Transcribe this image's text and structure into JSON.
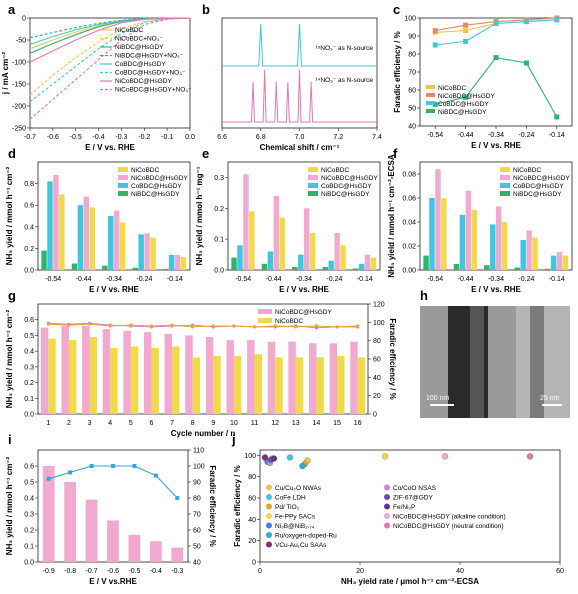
{
  "panel_labels": [
    "a",
    "b",
    "c",
    "d",
    "e",
    "f",
    "g",
    "h",
    "i",
    "j"
  ],
  "colors": {
    "NiCoBDC": "#f0d94a",
    "NiCoBDC@HsGDY": "#f2a9cf",
    "CoBDC@HsGDY": "#3fc7e0",
    "NiBDC@HsGDY": "#2fb56a",
    "fe_line_g": "#e8a23a",
    "fe_line_i": "#35a9d8",
    "pink_dark": "#e07ab4",
    "teal": "#5ecfd9"
  },
  "chart_data": [
    {
      "panel": "a",
      "type": "line",
      "xlabel": "E / V vs. RHE",
      "ylabel": "j / mA cm⁻²",
      "xlim": [
        -0.7,
        0.0
      ],
      "ylim": [
        -250,
        0
      ],
      "xticks": [
        "-0.7",
        "-0.6",
        "-0.5",
        "-0.4",
        "-0.3",
        "-0.2",
        "-0.1",
        "0.0"
      ],
      "yticks": [
        "0",
        "-50",
        "-100",
        "-150",
        "-200",
        "-250"
      ],
      "legend": [
        "NiCoBDC",
        "NiCoBDC+NO₃⁻",
        "NiBDC@HsGDY",
        "NiBDC@HsGDY+NO₃⁻",
        "CoBDC@HsGDY",
        "CoBDC@HsGDY+NO₃⁻",
        "NiCoBDC@HsGDY",
        "NiCoBDC@HsGDY+NO₃⁻"
      ],
      "series": [
        {
          "name": "NiCoBDC",
          "color": "#f0c64a",
          "dash": false,
          "x": [
            -0.7,
            -0.6,
            -0.5,
            -0.4,
            -0.3,
            -0.2,
            -0.1,
            0.0
          ],
          "values": [
            -70,
            -50,
            -32,
            -18,
            -7,
            -2,
            -1,
            0
          ]
        },
        {
          "name": "NiCoBDC+NO₃⁻",
          "color": "#f0c64a",
          "dash": true,
          "x": [
            -0.7,
            -0.6,
            -0.5,
            -0.4,
            -0.3,
            -0.2,
            -0.1,
            0.0
          ],
          "values": [
            -175,
            -130,
            -90,
            -55,
            -25,
            -8,
            -2,
            0
          ]
        },
        {
          "name": "NiBDC@HsGDY",
          "color": "#2fb56a",
          "dash": false,
          "x": [
            -0.7,
            -0.6,
            -0.5,
            -0.4,
            -0.3,
            -0.2,
            -0.1,
            0.0
          ],
          "values": [
            -80,
            -58,
            -38,
            -20,
            -8,
            -2,
            -1,
            0
          ]
        },
        {
          "name": "NiBDC@HsGDY+NO₃⁻",
          "color": "#2fb56a",
          "dash": true,
          "x": [
            -0.7,
            -0.6,
            -0.5,
            -0.4,
            -0.3,
            -0.2,
            -0.1,
            0.0
          ],
          "values": [
            -45,
            -33,
            -22,
            -12,
            -5,
            -1,
            0,
            0
          ]
        },
        {
          "name": "CoBDC@HsGDY",
          "color": "#3fc7e0",
          "dash": false,
          "x": [
            -0.7,
            -0.6,
            -0.5,
            -0.4,
            -0.3,
            -0.2,
            -0.1,
            0.0
          ],
          "values": [
            -60,
            -42,
            -27,
            -15,
            -6,
            -2,
            -1,
            0
          ]
        },
        {
          "name": "CoBDC@HsGDY+NO₃⁻",
          "color": "#3fc7e0",
          "dash": true,
          "x": [
            -0.7,
            -0.6,
            -0.5,
            -0.4,
            -0.3,
            -0.2,
            -0.1,
            0.0
          ],
          "values": [
            -190,
            -150,
            -110,
            -70,
            -35,
            -10,
            -2,
            0
          ]
        },
        {
          "name": "NiCoBDC@HsGDY",
          "color": "#e07ab4",
          "dash": false,
          "x": [
            -0.7,
            -0.6,
            -0.5,
            -0.4,
            -0.3,
            -0.2,
            -0.1,
            0.0
          ],
          "values": [
            -100,
            -75,
            -50,
            -28,
            -11,
            -3,
            -1,
            0
          ]
        },
        {
          "name": "NiCoBDC@HsGDY+NO₃⁻",
          "color": "#e07ab4",
          "dash": true,
          "x": [
            -0.7,
            -0.6,
            -0.5,
            -0.4,
            -0.3,
            -0.2,
            -0.1,
            0.0
          ],
          "values": [
            -230,
            -185,
            -140,
            -95,
            -50,
            -15,
            -3,
            0
          ]
        }
      ]
    },
    {
      "panel": "b",
      "type": "line",
      "xlabel": "Chemical shift / cm⁻¹",
      "xlim": [
        6.6,
        7.4
      ],
      "xticks": [
        "6.6",
        "6.8",
        "7.0",
        "7.2",
        "7.4"
      ],
      "annotations": [
        "¹⁵NO₃⁻ as N-source",
        "¹⁴NO₃⁻ as N-source"
      ],
      "series": [
        {
          "name": "",
          "color": "#3fc7e0",
          "x": [
            6.8,
            7.0
          ],
          "values": [
            1,
            1
          ]
        },
        {
          "name": "",
          "color": "#e07ab4",
          "x": [
            6.76,
            6.82,
            6.88,
            6.94,
            7.0,
            7.06
          ],
          "values": [
            1,
            1,
            1,
            1,
            1,
            1
          ]
        }
      ]
    },
    {
      "panel": "c",
      "type": "line",
      "xlabel": "E / V vs. RHE",
      "ylabel": "Faradic efficiency / %",
      "categories": [
        "-0.54",
        "-0.44",
        "-0.34",
        "-0.24",
        "-0.14"
      ],
      "ylim": [
        40,
        100
      ],
      "yticks": [
        "40",
        "50",
        "60",
        "70",
        "80",
        "90",
        "100"
      ],
      "legend": [
        "NiCoBDC",
        "NiCoBDC@HsGDY",
        "CoBDC@HsGDY",
        "NiBDC@HsGDY"
      ],
      "series": [
        {
          "name": "NiCoBDC",
          "color": "#f0c64a",
          "values": [
            92,
            93,
            97,
            98,
            99
          ]
        },
        {
          "name": "NiCoBDC@HsGDY",
          "color": "#e38b6a",
          "values": [
            93,
            96,
            98,
            99,
            100
          ]
        },
        {
          "name": "CoBDC@HsGDY",
          "color": "#3fc7e0",
          "values": [
            85,
            87,
            97,
            98,
            99
          ]
        },
        {
          "name": "NiBDC@HsGDY",
          "color": "#2fb56a",
          "values": [
            52,
            56,
            78,
            75,
            45
          ]
        }
      ]
    },
    {
      "panel": "d",
      "type": "bar",
      "xlabel": "E / V vs. RHE",
      "ylabel": "NH₃ yield / mmol h⁻¹ cm⁻²",
      "categories": [
        "-0.54",
        "-0.44",
        "-0.34",
        "-0.24",
        "-0.14"
      ],
      "ylim": [
        0,
        1.0
      ],
      "yticks": [
        "0.0",
        "0.2",
        "0.4",
        "0.6",
        "0.8"
      ],
      "legend": [
        "NiCoBDC",
        "NiCoBDC@HsGDY",
        "CoBDC@HsGDY",
        "NiBDC@HsGDY"
      ],
      "series": [
        {
          "name": "NiBDC@HsGDY",
          "color": "#2fb56a",
          "values": [
            0.18,
            0.06,
            0.04,
            0.02,
            0.01
          ]
        },
        {
          "name": "CoBDC@HsGDY",
          "color": "#3fc7e0",
          "values": [
            0.82,
            0.6,
            0.5,
            0.33,
            0.14
          ]
        },
        {
          "name": "NiCoBDC@HsGDY",
          "color": "#f2a9cf",
          "values": [
            0.88,
            0.68,
            0.55,
            0.34,
            0.14
          ]
        },
        {
          "name": "NiCoBDC",
          "color": "#f0d94a",
          "values": [
            0.7,
            0.58,
            0.44,
            0.3,
            0.12
          ]
        }
      ]
    },
    {
      "panel": "e",
      "type": "bar",
      "xlabel": "E / V vs. RHE",
      "ylabel": "NH₃ yield / mmol h⁻¹ mg⁻¹",
      "categories": [
        "-0.54",
        "-0.44",
        "-0.34",
        "-0.24",
        "-0.14"
      ],
      "ylim": [
        0,
        0.35
      ],
      "yticks": [
        "0.0",
        "0.1",
        "0.2",
        "0.3"
      ],
      "legend": [
        "NiCoBDC",
        "NiCoBDC@HsGDY",
        "CoBDC@HsGDY",
        "NiBDC@HsGDY"
      ],
      "series": [
        {
          "name": "NiBDC@HsGDY",
          "color": "#2fb56a",
          "values": [
            0.04,
            0.02,
            0.01,
            0.01,
            0.005
          ]
        },
        {
          "name": "CoBDC@HsGDY",
          "color": "#3fc7e0",
          "values": [
            0.08,
            0.06,
            0.05,
            0.03,
            0.02
          ]
        },
        {
          "name": "NiCoBDC@HsGDY",
          "color": "#f2a9cf",
          "values": [
            0.31,
            0.24,
            0.2,
            0.12,
            0.05
          ]
        },
        {
          "name": "NiCoBDC",
          "color": "#f0d94a",
          "values": [
            0.19,
            0.17,
            0.12,
            0.08,
            0.04
          ]
        }
      ]
    },
    {
      "panel": "f",
      "type": "bar",
      "xlabel": "E / V vs. RHE",
      "ylabel": "NH₃ yield / mmol h⁻¹ cm⁻²-ECSA",
      "categories": [
        "-0.54",
        "-0.44",
        "-0.34",
        "-0.24",
        "-0.14"
      ],
      "ylim": [
        0,
        0.09
      ],
      "yticks": [
        "0.00",
        "0.02",
        "0.04",
        "0.06",
        "0.08"
      ],
      "legend": [
        "NiCoBDC",
        "NiCoBDC@HsGDY",
        "CoBDC@HsGDY",
        "NiBDC@HsGDY"
      ],
      "series": [
        {
          "name": "NiBDC@HsGDY",
          "color": "#2fb56a",
          "values": [
            0.012,
            0.005,
            0.004,
            0.002,
            0.001
          ]
        },
        {
          "name": "CoBDC@HsGDY",
          "color": "#3fc7e0",
          "values": [
            0.06,
            0.046,
            0.038,
            0.025,
            0.012
          ]
        },
        {
          "name": "NiCoBDC@HsGDY",
          "color": "#f2a9cf",
          "values": [
            0.084,
            0.066,
            0.053,
            0.033,
            0.015
          ]
        },
        {
          "name": "NiCoBDC",
          "color": "#f0d94a",
          "values": [
            0.06,
            0.05,
            0.04,
            0.027,
            0.012
          ]
        }
      ]
    },
    {
      "panel": "g",
      "type": "bar",
      "xlabel": "Cycle number / n",
      "ylabel": "NH₃ yield / mmol h⁻¹ cm⁻²",
      "y2label": "Faradic efficiency / %",
      "categories": [
        "1",
        "2",
        "3",
        "4",
        "5",
        "6",
        "7",
        "8",
        "9",
        "10",
        "11",
        "12",
        "13",
        "14",
        "15",
        "16"
      ],
      "ylim": [
        0,
        0.7
      ],
      "yticks": [
        "0.0",
        "0.1",
        "0.2",
        "0.3",
        "0.4",
        "0.5",
        "0.6"
      ],
      "y2lim": [
        0,
        120
      ],
      "y2ticks": [
        "0",
        "20",
        "40",
        "60",
        "80",
        "100",
        "120"
      ],
      "legend": [
        "NiCoBDC@HsGDY",
        "NiCoBDC"
      ],
      "series": [
        {
          "name": "NiCoBDC@HsGDY",
          "color": "#f2a9cf",
          "values": [
            0.55,
            0.56,
            0.56,
            0.54,
            0.53,
            0.52,
            0.51,
            0.5,
            0.49,
            0.47,
            0.47,
            0.46,
            0.46,
            0.45,
            0.45,
            0.46
          ]
        },
        {
          "name": "NiCoBDC",
          "color": "#f0d94a",
          "values": [
            0.48,
            0.47,
            0.49,
            0.42,
            0.43,
            0.42,
            0.43,
            0.36,
            0.37,
            0.37,
            0.38,
            0.36,
            0.36,
            0.36,
            0.37,
            0.36
          ]
        },
        {
          "name": "NiCoBDC@HsGDY",
          "color": "#e07ab4",
          "axis": "y2",
          "values": [
            99,
            98,
            99,
            97,
            96,
            95,
            96,
            97,
            95,
            96,
            95,
            95,
            96,
            94,
            95,
            95
          ]
        },
        {
          "name": "NiCoBDC",
          "color": "#e8a23a",
          "axis": "y2",
          "values": [
            98,
            97,
            98,
            96,
            97,
            96,
            97,
            95,
            96,
            96,
            95,
            96,
            95,
            96,
            95,
            96
          ]
        }
      ]
    },
    {
      "panel": "i",
      "type": "bar",
      "xlabel": "E / V vs.RHE",
      "ylabel": "NH₃ yield / mmol h⁻¹ cm⁻²",
      "y2label": "Faradic efficiency / %",
      "categories": [
        "-0.9",
        "-0.8",
        "-0.7",
        "-0.6",
        "-0.5",
        "-0.4",
        "-0.3"
      ],
      "ylim": [
        0,
        0.7
      ],
      "yticks": [
        "0.0",
        "0.1",
        "0.2",
        "0.3",
        "0.4",
        "0.5",
        "0.6"
      ],
      "y2lim": [
        40,
        110
      ],
      "y2ticks": [
        "40",
        "50",
        "60",
        "70",
        "80",
        "90",
        "100",
        "110"
      ],
      "series": [
        {
          "name": "",
          "color": "#f2a9cf",
          "values": [
            0.6,
            0.5,
            0.39,
            0.26,
            0.17,
            0.13,
            0.09
          ]
        },
        {
          "name": "",
          "color": "#35a9d8",
          "axis": "y2",
          "values": [
            92,
            96,
            100,
            100,
            100,
            94,
            80
          ]
        }
      ]
    },
    {
      "panel": "j",
      "type": "scatter",
      "xlabel": "NH₃ yield rate / μmol h⁻¹ cm⁻²-ECSA",
      "ylabel": "Faradic efficiency / %",
      "xlim": [
        0,
        60
      ],
      "ylim": [
        0,
        105
      ],
      "xticks": [
        "0",
        "20",
        "40",
        "60"
      ],
      "yticks": [
        "0",
        "20",
        "40",
        "60",
        "80",
        "100"
      ],
      "legend": [
        "Cu/Cu₂O NWAs",
        "CoFe LDH",
        "Pd/ TiO₂",
        "Fe-PPy SACs",
        "Ni₃B@NiB₂.₇₄",
        "Ru/oxygen-doped-Ru",
        "VCu-Au₁Cu SAAs",
        "Co/CoO NSAS",
        "ZIF-67@GDY",
        "Fe/Ni₂P",
        "NiCoBDC@HsGDY (alkaline condition)",
        "NiCoBDC@HsGDY (neutral condition)"
      ],
      "series": [
        {
          "name": "Cu/Cu₂O NWAs",
          "color": "#f0c64a",
          "x": [
            9.5
          ],
          "values": [
            95
          ]
        },
        {
          "name": "CoFe LDH",
          "color": "#3fc7e0",
          "x": [
            6.0
          ],
          "values": [
            98
          ]
        },
        {
          "name": "Pd/ TiO₂",
          "color": "#e8a23a",
          "x": [
            9.0
          ],
          "values": [
            92
          ]
        },
        {
          "name": "Fe-PPy SACs",
          "color": "#f0d94a",
          "x": [
            2.5
          ],
          "values": [
            97
          ]
        },
        {
          "name": "Ni₃B@NiB₂.₇₄",
          "color": "#4a7fd9",
          "x": [
            1.5
          ],
          "values": [
            94
          ]
        },
        {
          "name": "Ru/oxygen-doped-Ru",
          "color": "#35a9d8",
          "x": [
            8.5
          ],
          "values": [
            90
          ]
        },
        {
          "name": "VCu-Au₁Cu SAAs",
          "color": "#8a2a7a",
          "x": [
            1.0
          ],
          "values": [
            98
          ]
        },
        {
          "name": "Co/CoO NSAS",
          "color": "#c58bd9",
          "x": [
            2.0
          ],
          "values": [
            93
          ]
        },
        {
          "name": "ZIF-67@GDY",
          "color": "#6a4ab5",
          "x": [
            2.2
          ],
          "values": [
            96
          ]
        },
        {
          "name": "Fe/Ni₂P",
          "color": "#5b3a8a",
          "x": [
            2.8
          ],
          "values": [
            97
          ]
        },
        {
          "name": "NiCoBDC@HsGDY (alkaline condition)",
          "color": "#f2a9cf",
          "x": [
            37.0
          ],
          "values": [
            99
          ]
        },
        {
          "name": "NiCoBDC@HsGDY (neutral condition)",
          "color": "#e07ab4",
          "x": [
            54.0
          ],
          "values": [
            99
          ]
        },
        {
          "name": "",
          "color": "#f0d94a",
          "x": [
            25.0
          ],
          "values": [
            99
          ]
        }
      ]
    }
  ],
  "image_h": {
    "scale_left": "100 nm",
    "scale_right": "25 nm"
  }
}
